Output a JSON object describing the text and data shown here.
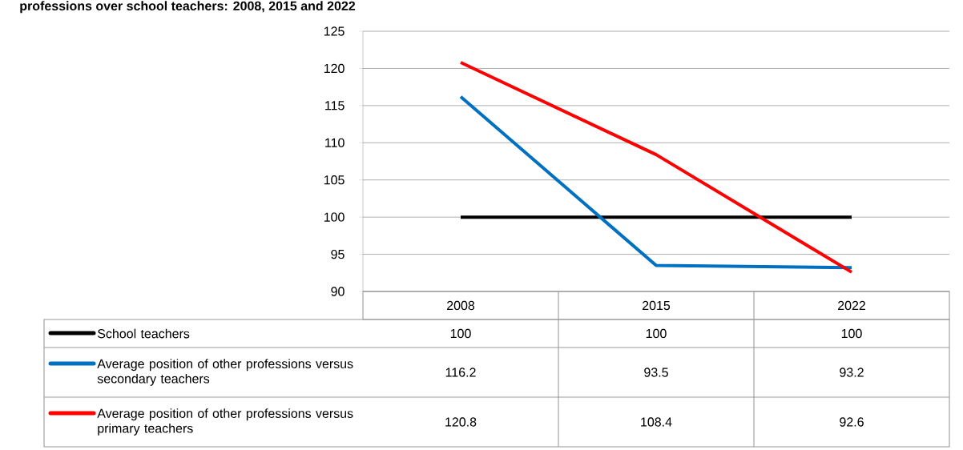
{
  "chart_data": {
    "type": "line",
    "title": "professions over school teachers: 2008, 2015 and 2022",
    "categories": [
      "2008",
      "2015",
      "2022"
    ],
    "series": [
      {
        "name": "School teachers",
        "color": "#000000",
        "values": [
          100,
          100,
          100
        ]
      },
      {
        "name": "Average position of other professions versus secondary teachers",
        "color": "#0070c0",
        "values": [
          116.2,
          93.5,
          93.2
        ]
      },
      {
        "name": "Average position of other professions versus primary teachers",
        "color": "#ff0000",
        "values": [
          120.8,
          108.4,
          92.6
        ]
      }
    ],
    "ylim": [
      90,
      125
    ],
    "yticks": [
      90,
      95,
      100,
      105,
      110,
      115,
      120,
      125
    ],
    "grid": "y",
    "legend": "bottom",
    "data_labels": true,
    "marker": "none",
    "line_style": "solid"
  }
}
